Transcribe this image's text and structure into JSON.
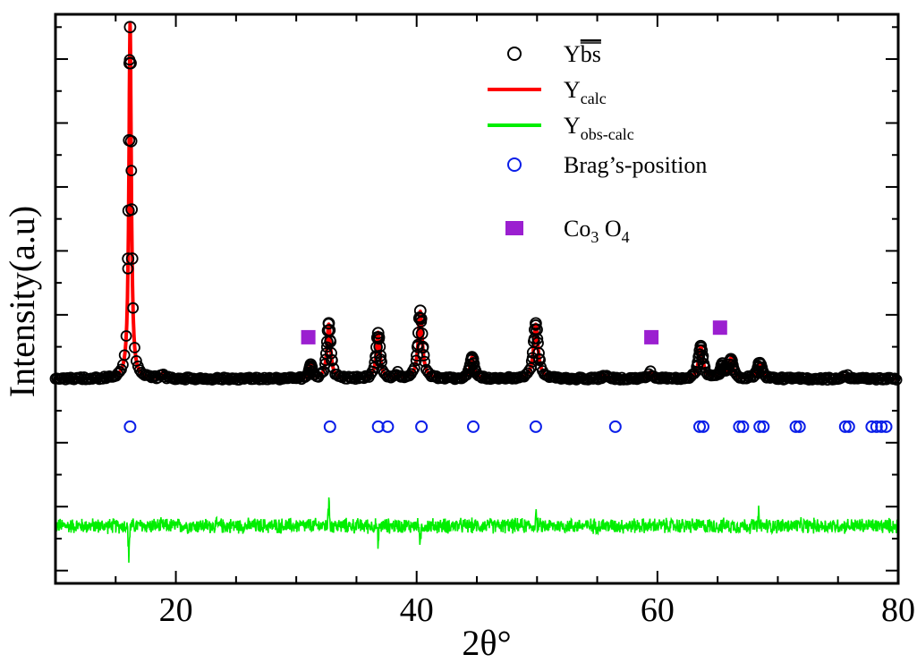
{
  "chart_data": {
    "type": "line",
    "title": "",
    "xlabel": "2θ°",
    "ylabel": "Intensity(a.u)",
    "xlim": [
      10,
      80
    ],
    "ylim": [
      -3.2,
      5.7
    ],
    "x_ticks": [
      20,
      40,
      60,
      80
    ],
    "x_tick_labels": [
      "20",
      "40",
      "60",
      "80"
    ],
    "y_tick_labels_shown": false,
    "grid": false,
    "legend_position": "top-right",
    "legend": [
      {
        "key": "obs",
        "main": "Y",
        "over": "bs",
        "sub": "",
        "marker": "open-circle-black"
      },
      {
        "key": "calc",
        "main": "Y",
        "over": "",
        "sub": "calc",
        "marker": "line-red"
      },
      {
        "key": "diff",
        "main": "Y",
        "over": "",
        "sub": "obs-calc",
        "marker": "line-green"
      },
      {
        "key": "bragg",
        "main": "Brag’s-position",
        "over": "",
        "sub": "",
        "marker": "open-circle-blue"
      },
      {
        "key": "co3o4",
        "main": "Co",
        "over": "",
        "sub": "3",
        "main2": " O",
        "sub2": "4",
        "marker": "square-purple"
      }
    ],
    "baseline": 0,
    "peaks": [
      {
        "center": 16.2,
        "height": 5.55,
        "width": 0.12
      },
      {
        "center": 18.9,
        "height": 0.08,
        "width": 0.15
      },
      {
        "center": 31.2,
        "height": 0.22,
        "width": 0.12
      },
      {
        "center": 32.7,
        "height": 0.85,
        "width": 0.18
      },
      {
        "center": 36.8,
        "height": 0.72,
        "width": 0.18
      },
      {
        "center": 38.4,
        "height": 0.08,
        "width": 0.15
      },
      {
        "center": 40.3,
        "height": 1.05,
        "width": 0.2
      },
      {
        "center": 44.6,
        "height": 0.33,
        "width": 0.2
      },
      {
        "center": 49.9,
        "height": 0.85,
        "width": 0.22
      },
      {
        "center": 55.6,
        "height": 0.05,
        "width": 0.2
      },
      {
        "center": 59.4,
        "height": 0.1,
        "width": 0.2
      },
      {
        "center": 63.6,
        "height": 0.5,
        "width": 0.22
      },
      {
        "center": 65.4,
        "height": 0.2,
        "width": 0.2
      },
      {
        "center": 66.1,
        "height": 0.3,
        "width": 0.2
      },
      {
        "center": 68.5,
        "height": 0.25,
        "width": 0.22
      },
      {
        "center": 75.7,
        "height": 0.05,
        "width": 0.25
      }
    ],
    "bragg_y": -0.75,
    "bragg_positions": [
      16.2,
      32.8,
      36.8,
      37.6,
      40.4,
      44.7,
      49.9,
      56.5,
      63.5,
      63.8,
      66.8,
      67.1,
      68.5,
      68.8,
      71.5,
      71.8,
      75.6,
      75.9,
      77.8,
      78.2,
      78.6,
      79.0
    ],
    "co3o4_markers": [
      {
        "x": 31.0,
        "y": 0.65
      },
      {
        "x": 59.5,
        "y": 0.65
      },
      {
        "x": 65.2,
        "y": 0.8
      }
    ],
    "difference_offset": -2.3,
    "difference_amplitude": 0.1,
    "difference_features": [
      {
        "x": 16.1,
        "y": -0.55
      },
      {
        "x": 32.7,
        "y": 0.5
      },
      {
        "x": 36.8,
        "y": -0.3
      },
      {
        "x": 40.3,
        "y": -0.25
      },
      {
        "x": 49.9,
        "y": 0.2
      },
      {
        "x": 68.4,
        "y": 0.22
      }
    ],
    "colors": {
      "obs": "#000000",
      "calc": "#ff0000",
      "diff": "#00ee00",
      "bragg": "#0a1ee8",
      "co3o4": "#9b1fd0",
      "axes": "#000000"
    }
  }
}
